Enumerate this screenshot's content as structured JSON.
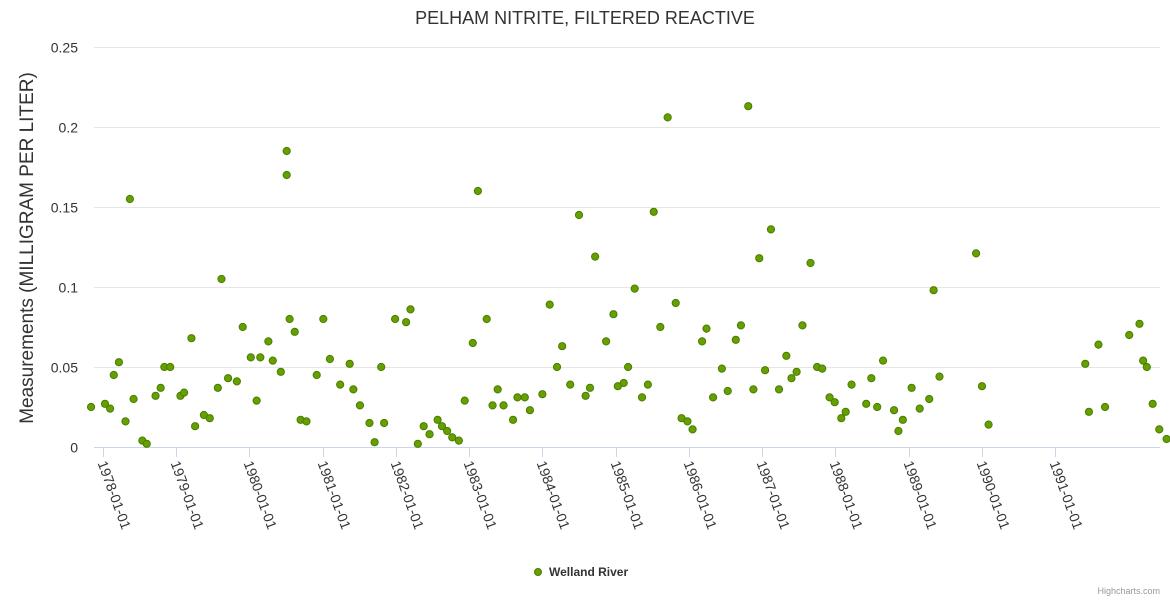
{
  "chart_data": {
    "type": "scatter",
    "title": "PELHAM NITRITE, FILTERED REACTIVE",
    "ylabel": "Measurements (MILLIGRAM PER LITER)",
    "xlabel": "",
    "ylim": [
      0,
      0.25
    ],
    "y_ticks": [
      {
        "value": 0,
        "label": "0"
      },
      {
        "value": 0.05,
        "label": "0.05"
      },
      {
        "value": 0.1,
        "label": "0.1"
      },
      {
        "value": 0.15,
        "label": "0.15"
      },
      {
        "value": 0.2,
        "label": "0.2"
      },
      {
        "value": 0.25,
        "label": "0.25"
      }
    ],
    "xlim": [
      1977.88,
      1992.43
    ],
    "x_ticks": [
      {
        "value": 1978,
        "label": "1978-01-01"
      },
      {
        "value": 1979,
        "label": "1979-01-01"
      },
      {
        "value": 1980,
        "label": "1980-01-01"
      },
      {
        "value": 1981,
        "label": "1981-01-01"
      },
      {
        "value": 1982,
        "label": "1982-01-01"
      },
      {
        "value": 1983,
        "label": "1983-01-01"
      },
      {
        "value": 1984,
        "label": "1984-01-01"
      },
      {
        "value": 1985,
        "label": "1985-01-01"
      },
      {
        "value": 1986,
        "label": "1986-01-01"
      },
      {
        "value": 1987,
        "label": "1987-01-01"
      },
      {
        "value": 1988,
        "label": "1988-01-01"
      },
      {
        "value": 1989,
        "label": "1989-01-01"
      },
      {
        "value": 1990,
        "label": "1990-01-01"
      },
      {
        "value": 1991,
        "label": "1991-01-01"
      }
    ],
    "grid": true,
    "legend_position": "bottom-center",
    "series": [
      {
        "name": "Welland River",
        "color": "#66a000",
        "border_color": "#4a7c00",
        "points": [
          [
            1977.84,
            0.025
          ],
          [
            1978.03,
            0.027
          ],
          [
            1978.1,
            0.024
          ],
          [
            1978.15,
            0.045
          ],
          [
            1978.22,
            0.053
          ],
          [
            1978.31,
            0.016
          ],
          [
            1978.37,
            0.155
          ],
          [
            1978.42,
            0.03
          ],
          [
            1978.54,
            0.004
          ],
          [
            1978.6,
            0.002
          ],
          [
            1978.72,
            0.032
          ],
          [
            1978.79,
            0.037
          ],
          [
            1978.84,
            0.05
          ],
          [
            1978.92,
            0.05
          ],
          [
            1979.06,
            0.032
          ],
          [
            1979.11,
            0.034
          ],
          [
            1979.21,
            0.068
          ],
          [
            1979.26,
            0.013
          ],
          [
            1979.38,
            0.02
          ],
          [
            1979.46,
            0.018
          ],
          [
            1979.57,
            0.037
          ],
          [
            1979.62,
            0.105
          ],
          [
            1979.71,
            0.043
          ],
          [
            1979.83,
            0.041
          ],
          [
            1979.91,
            0.075
          ],
          [
            1980.02,
            0.056
          ],
          [
            1980.1,
            0.029
          ],
          [
            1980.15,
            0.056
          ],
          [
            1980.26,
            0.066
          ],
          [
            1980.32,
            0.054
          ],
          [
            1980.43,
            0.047
          ],
          [
            1980.51,
            0.185
          ],
          [
            1980.51,
            0.17
          ],
          [
            1980.55,
            0.08
          ],
          [
            1980.62,
            0.072
          ],
          [
            1980.7,
            0.017
          ],
          [
            1980.78,
            0.016
          ],
          [
            1980.92,
            0.045
          ],
          [
            1981.01,
            0.08
          ],
          [
            1981.1,
            0.055
          ],
          [
            1981.24,
            0.039
          ],
          [
            1981.37,
            0.052
          ],
          [
            1981.42,
            0.036
          ],
          [
            1981.51,
            0.026
          ],
          [
            1981.64,
            0.015
          ],
          [
            1981.71,
            0.003
          ],
          [
            1981.8,
            0.05
          ],
          [
            1981.84,
            0.015
          ],
          [
            1981.99,
            0.08
          ],
          [
            1982.14,
            0.078
          ],
          [
            1982.2,
            0.086
          ],
          [
            1982.3,
            0.002
          ],
          [
            1982.38,
            0.013
          ],
          [
            1982.46,
            0.008
          ],
          [
            1982.57,
            0.017
          ],
          [
            1982.63,
            0.013
          ],
          [
            1982.7,
            0.01
          ],
          [
            1982.77,
            0.006
          ],
          [
            1982.86,
            0.004
          ],
          [
            1982.94,
            0.029
          ],
          [
            1983.05,
            0.065
          ],
          [
            1983.12,
            0.16
          ],
          [
            1983.24,
            0.08
          ],
          [
            1983.32,
            0.026
          ],
          [
            1983.39,
            0.036
          ],
          [
            1983.47,
            0.026
          ],
          [
            1983.6,
            0.017
          ],
          [
            1983.66,
            0.031
          ],
          [
            1983.76,
            0.031
          ],
          [
            1983.83,
            0.023
          ],
          [
            1984.0,
            0.033
          ],
          [
            1984.1,
            0.089
          ],
          [
            1984.2,
            0.05
          ],
          [
            1984.27,
            0.063
          ],
          [
            1984.38,
            0.039
          ],
          [
            1984.5,
            0.145
          ],
          [
            1984.59,
            0.032
          ],
          [
            1984.65,
            0.037
          ],
          [
            1984.72,
            0.119
          ],
          [
            1984.87,
            0.066
          ],
          [
            1984.97,
            0.083
          ],
          [
            1985.03,
            0.038
          ],
          [
            1985.11,
            0.04
          ],
          [
            1985.17,
            0.05
          ],
          [
            1985.26,
            0.099
          ],
          [
            1985.36,
            0.031
          ],
          [
            1985.44,
            0.039
          ],
          [
            1985.52,
            0.147
          ],
          [
            1985.61,
            0.075
          ],
          [
            1985.71,
            0.206
          ],
          [
            1985.82,
            0.09
          ],
          [
            1985.9,
            0.018
          ],
          [
            1985.98,
            0.016
          ],
          [
            1986.05,
            0.011
          ],
          [
            1986.18,
            0.066
          ],
          [
            1986.24,
            0.074
          ],
          [
            1986.33,
            0.031
          ],
          [
            1986.45,
            0.049
          ],
          [
            1986.53,
            0.035
          ],
          [
            1986.64,
            0.067
          ],
          [
            1986.71,
            0.076
          ],
          [
            1986.81,
            0.213
          ],
          [
            1986.88,
            0.036
          ],
          [
            1986.96,
            0.118
          ],
          [
            1987.04,
            0.048
          ],
          [
            1987.12,
            0.136
          ],
          [
            1987.23,
            0.036
          ],
          [
            1987.33,
            0.057
          ],
          [
            1987.4,
            0.043
          ],
          [
            1987.47,
            0.047
          ],
          [
            1987.55,
            0.076
          ],
          [
            1987.66,
            0.115
          ],
          [
            1987.75,
            0.05
          ],
          [
            1987.82,
            0.049
          ],
          [
            1987.92,
            0.031
          ],
          [
            1987.99,
            0.028
          ],
          [
            1988.08,
            0.018
          ],
          [
            1988.14,
            0.022
          ],
          [
            1988.22,
            0.039
          ],
          [
            1988.42,
            0.027
          ],
          [
            1988.49,
            0.043
          ],
          [
            1988.57,
            0.025
          ],
          [
            1988.65,
            0.054
          ],
          [
            1988.8,
            0.023
          ],
          [
            1988.86,
            0.01
          ],
          [
            1988.92,
            0.017
          ],
          [
            1989.04,
            0.037
          ],
          [
            1989.15,
            0.024
          ],
          [
            1989.28,
            0.03
          ],
          [
            1989.34,
            0.098
          ],
          [
            1989.42,
            0.044
          ],
          [
            1989.92,
            0.121
          ],
          [
            1990.0,
            0.038
          ],
          [
            1990.09,
            0.014
          ],
          [
            1991.41,
            0.052
          ],
          [
            1991.46,
            0.022
          ],
          [
            1991.59,
            0.064
          ],
          [
            1991.68,
            0.025
          ],
          [
            1992.01,
            0.07
          ],
          [
            1992.15,
            0.077
          ],
          [
            1992.2,
            0.054
          ],
          [
            1992.25,
            0.05
          ],
          [
            1992.33,
            0.027
          ],
          [
            1992.42,
            0.011
          ],
          [
            1992.52,
            0.005
          ]
        ]
      }
    ],
    "credits": "Highcharts.com"
  }
}
